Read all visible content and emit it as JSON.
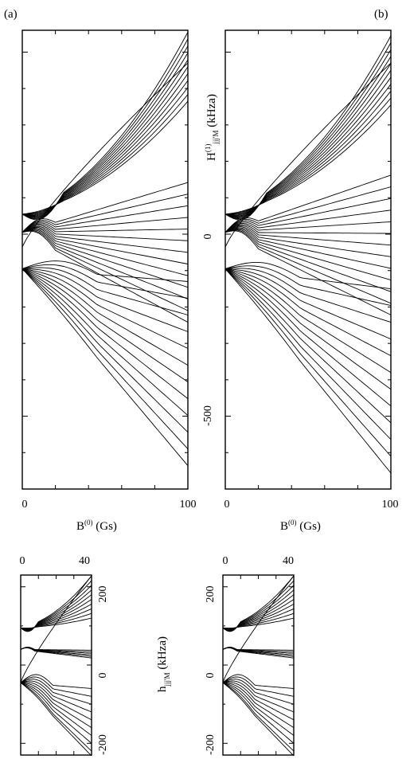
{
  "figure": {
    "panel_a_label": "(a)",
    "panel_b_label": "(b)",
    "main_xlabel_symbol": "B",
    "main_xlabel_sup": "(0)",
    "main_xlabel_unit": " (Gs)",
    "main_ylabel_symbol": "H",
    "main_ylabel_sup": "(1)",
    "main_ylabel_sub": "jjj'M",
    "main_ylabel_unit": " (kHza)",
    "inset_ylabel_symbol": "h",
    "inset_ylabel_sub": "jjj'M",
    "inset_ylabel_unit": " (kHza)"
  },
  "chart_data": [
    {
      "type": "line",
      "panel": "(a)",
      "xlabel": "B(0) (Gs)",
      "ylabel": "H(1)jjj'M (kHza)",
      "xlim": [
        0,
        100
      ],
      "ylim": [
        -700,
        560
      ],
      "xticks": [
        0,
        100
      ],
      "xtick_labels": [
        "0",
        "100"
      ],
      "yticks": [
        0,
        -500
      ],
      "ytick_labels": [
        "0",
        "-500"
      ],
      "families": {
        "upper": {
          "start": 55,
          "ends": [
            555,
            536,
            517,
            498,
            479,
            460,
            441,
            422,
            403,
            384,
            365
          ],
          "min_depth": 35
        },
        "middle": {
          "start": 5,
          "ends": [
            142,
            110,
            78,
            46,
            14,
            -18,
            -50,
            -82,
            -114,
            -146,
            -178,
            -210,
            -242
          ],
          "peak": 22
        },
        "lower": {
          "start": -95,
          "ends": [
            -130,
            -176,
            -222,
            -268,
            -314,
            -360,
            -406,
            -452,
            -498,
            -544,
            -590,
            -636
          ],
          "bulge": 25
        },
        "crossing": {
          "start": -35,
          "end": 470
        }
      }
    },
    {
      "type": "line",
      "panel": "(b)",
      "xlabel": "B(0) (Gs)",
      "ylabel": "H(1)jjj'M (kHza)",
      "xlim": [
        0,
        100
      ],
      "ylim": [
        -700,
        560
      ],
      "xticks": [
        0,
        100
      ],
      "xtick_labels": [
        "0",
        "100"
      ],
      "yticks": [
        0,
        -500
      ],
      "ytick_labels": [
        "0",
        "-500"
      ],
      "families": {
        "upper": {
          "start": 55,
          "ends": [
            545,
            526,
            507,
            488,
            469,
            450,
            431,
            412,
            393,
            374,
            355
          ],
          "min_depth": 35
        },
        "middle": {
          "start": 5,
          "ends": [
            162,
            130,
            98,
            66,
            34,
            2,
            -30,
            -62,
            -94,
            -126,
            -158,
            -190,
            -222
          ],
          "peak": 22
        },
        "lower": {
          "start": -95,
          "ends": [
            -150,
            -196,
            -242,
            -288,
            -334,
            -380,
            -426,
            -472,
            -518,
            -564,
            -610,
            -656
          ],
          "bulge": 25
        },
        "crossing": {
          "start": -35,
          "end": 470
        }
      }
    },
    {
      "type": "line",
      "panel": "inset (a)",
      "xlim": [
        0,
        40
      ],
      "ylim": [
        -230,
        230
      ],
      "xticks": [
        0,
        40
      ],
      "xtick_labels": [
        "0",
        "40"
      ],
      "yticks": [
        200,
        0,
        -200
      ],
      "ytick_labels": [
        "200",
        "0",
        "-200"
      ],
      "families": {
        "upper": {
          "start": 95,
          "ends": [
            228,
            216,
            204,
            192,
            180,
            168,
            156,
            144,
            132,
            120
          ],
          "min_depth": 15
        },
        "middle": {
          "start": 40,
          "ends": [
            38,
            34,
            30,
            26,
            22,
            18
          ],
          "peak": 6
        },
        "lower": {
          "start": -45,
          "ends": [
            -60,
            -80,
            -100,
            -120,
            -140,
            -160,
            -180,
            -200,
            -220,
            -232
          ],
          "bulge": 20
        },
        "crossing": {
          "start": -45,
          "end": 228
        }
      }
    },
    {
      "type": "line",
      "panel": "inset (b)",
      "xlim": [
        0,
        40
      ],
      "ylim": [
        -230,
        230
      ],
      "xticks": [
        0,
        40
      ],
      "xtick_labels": [
        "0",
        "40"
      ],
      "yticks": [
        200,
        0,
        -200
      ],
      "ytick_labels": [
        "200",
        "0",
        "-200"
      ],
      "families": {
        "upper": {
          "start": 95,
          "ends": [
            228,
            216,
            204,
            192,
            180,
            168,
            156,
            144,
            132,
            120
          ],
          "min_depth": 15
        },
        "middle": {
          "start": 40,
          "ends": [
            38,
            34,
            30,
            26,
            22,
            18
          ],
          "peak": 6
        },
        "lower": {
          "start": -45,
          "ends": [
            -60,
            -80,
            -100,
            -120,
            -140,
            -160,
            -180,
            -200,
            -220,
            -232
          ],
          "bulge": 20
        },
        "crossing": {
          "start": -45,
          "end": 228
        }
      }
    }
  ]
}
